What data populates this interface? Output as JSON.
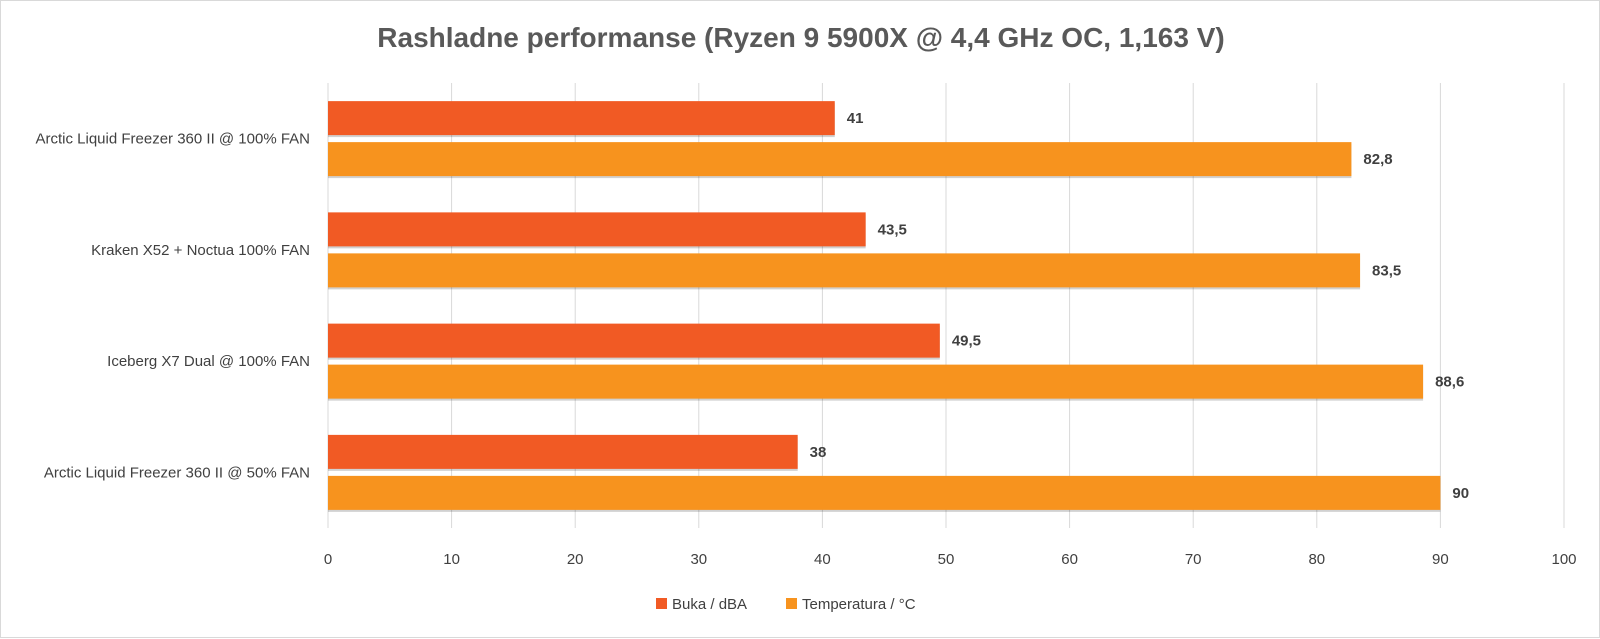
{
  "chart_data": {
    "type": "bar",
    "orientation": "horizontal",
    "title": "Rashladne performanse (Ryzen 9 5900X @ 4,4 GHz OC, 1,163 V)",
    "categories": [
      "Arctic Liquid Freezer 360 II @ 100% FAN",
      "Kraken X52 + Noctua 100% FAN",
      "Iceberg X7 Dual @ 100% FAN",
      "Arctic Liquid Freezer 360 II @ 50% FAN"
    ],
    "series": [
      {
        "name": "Buka / dBA",
        "color": "#f15a24",
        "values": [
          41,
          43.5,
          49.5,
          38
        ],
        "labels": [
          "41",
          "43,5",
          "49,5",
          "38"
        ]
      },
      {
        "name": "Temperatura / °C",
        "color": "#f7931e",
        "values": [
          82.8,
          83.5,
          88.6,
          90
        ],
        "labels": [
          "82,8",
          "83,5",
          "88,6",
          "90"
        ]
      }
    ],
    "xlim": [
      0,
      100
    ],
    "xticks": [
      0,
      10,
      20,
      30,
      40,
      50,
      60,
      70,
      80,
      90,
      100
    ],
    "grid": true,
    "legend": "bottom"
  }
}
